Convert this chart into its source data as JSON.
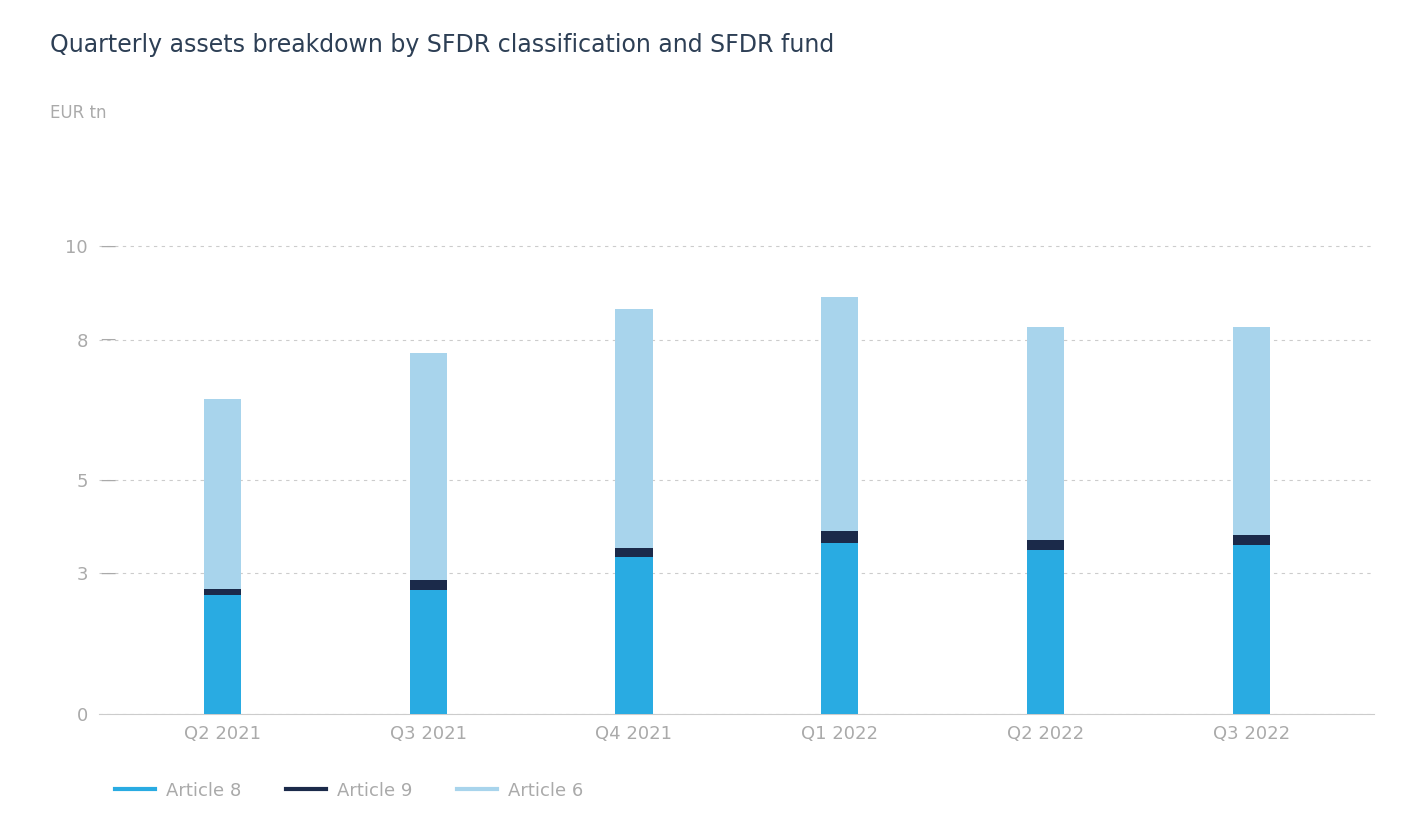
{
  "title": "Quarterly assets breakdown by SFDR classification and SFDR fund",
  "ylabel": "EUR tn",
  "categories": [
    "Q2 2021",
    "Q3 2021",
    "Q4 2021",
    "Q1 2022",
    "Q2 2022",
    "Q3 2022"
  ],
  "article8": [
    2.55,
    2.65,
    3.35,
    3.65,
    3.5,
    3.6
  ],
  "article9": [
    0.12,
    0.22,
    0.2,
    0.25,
    0.22,
    0.22
  ],
  "article6": [
    4.05,
    4.85,
    5.1,
    5.0,
    4.55,
    4.45
  ],
  "color_article8": "#29ABE2",
  "color_article9": "#1B2A4A",
  "color_article6": "#A8D4EC",
  "ylim": [
    0,
    11
  ],
  "yticks": [
    0,
    3,
    5,
    8,
    10
  ],
  "background_color": "#ffffff",
  "title_color": "#2d3f55",
  "label_color": "#aaaaaa",
  "tick_color": "#aaaaaa",
  "grid_color": "#cccccc",
  "bar_width": 0.18
}
